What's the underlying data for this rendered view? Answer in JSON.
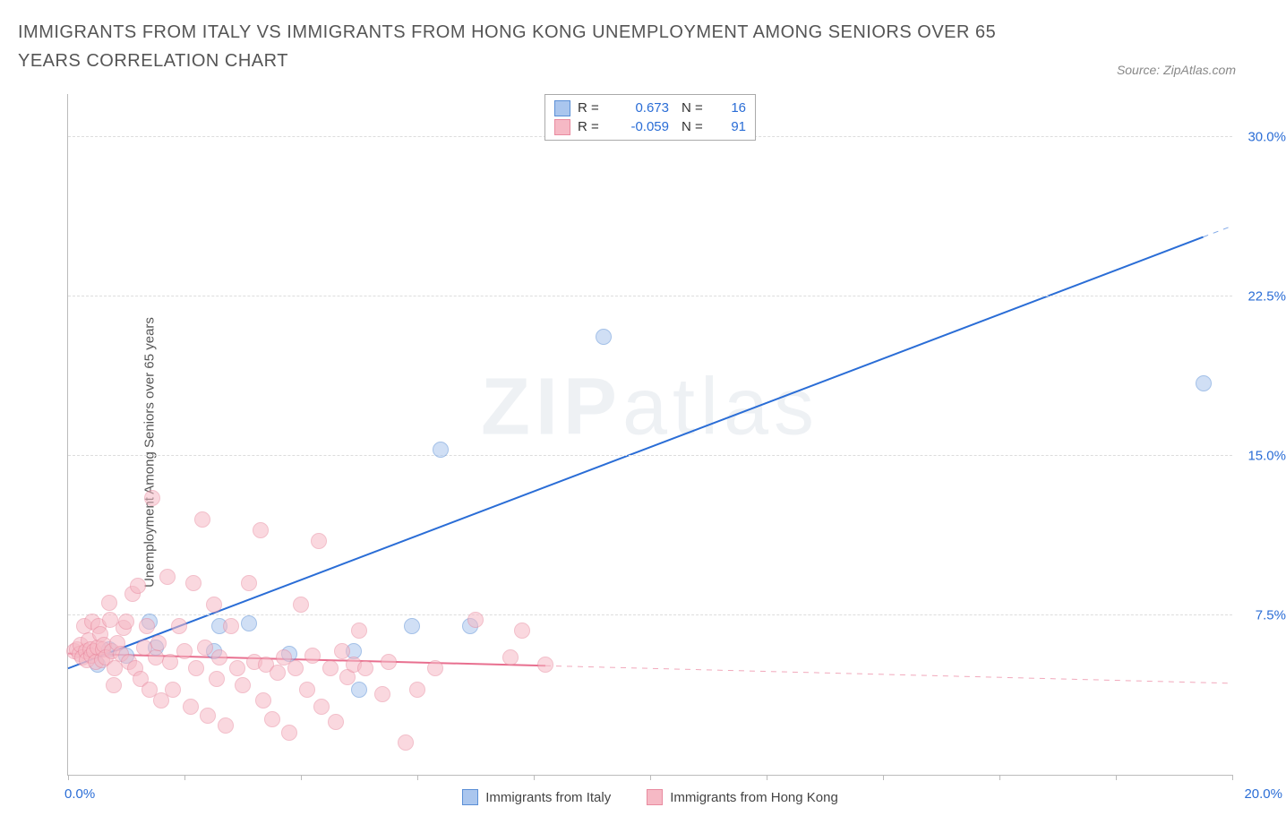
{
  "title": "IMMIGRANTS FROM ITALY VS IMMIGRANTS FROM HONG KONG UNEMPLOYMENT AMONG SENIORS OVER 65 YEARS CORRELATION CHART",
  "source_label": "Source: ZipAtlas.com",
  "watermark": {
    "bold": "ZIP",
    "rest": "atlas",
    "color": "#7a8fac"
  },
  "yaxis_label": "Unemployment Among Seniors over 65 years",
  "chart": {
    "type": "scatter",
    "background_color": "#ffffff",
    "grid_color": "#dddddd",
    "axis_color": "#bbbbbb",
    "xlim": [
      0,
      20
    ],
    "ylim": [
      0,
      32
    ],
    "xticks": [
      0,
      2,
      4,
      6,
      8,
      10,
      12,
      14,
      16,
      18,
      20
    ],
    "xtick_label_min": "0.0%",
    "xtick_label_max": "20.0%",
    "xtick_label_color": "#2a6dd6",
    "yticks": [
      7.5,
      15.0,
      22.5,
      30.0
    ],
    "ytick_labels": [
      "7.5%",
      "15.0%",
      "22.5%",
      "30.0%"
    ],
    "ytick_label_color": "#2a6dd6",
    "marker_radius": 8,
    "marker_border_width": 1.2,
    "series": [
      {
        "id": "italy",
        "label": "Immigrants from Italy",
        "point_fill": "#aac6ee",
        "point_stroke": "#5b8fd6",
        "fill_opacity": 0.55,
        "trend": {
          "x1": 0,
          "y1": 5.0,
          "x2": 20,
          "y2": 25.8,
          "data_xmax": 19.5,
          "color": "#2a6dd6",
          "width": 2
        },
        "stats": {
          "R": "0.673",
          "N": "16"
        },
        "points": [
          [
            0.5,
            5.2
          ],
          [
            0.7,
            5.9
          ],
          [
            1.0,
            5.6
          ],
          [
            1.4,
            7.2
          ],
          [
            1.5,
            6.0
          ],
          [
            2.5,
            5.8
          ],
          [
            2.6,
            7.0
          ],
          [
            3.1,
            7.1
          ],
          [
            3.8,
            5.7
          ],
          [
            4.9,
            5.8
          ],
          [
            5.0,
            4.0
          ],
          [
            5.9,
            7.0
          ],
          [
            6.9,
            7.0
          ],
          [
            6.4,
            15.3
          ],
          [
            9.2,
            20.6
          ],
          [
            19.5,
            18.4
          ]
        ]
      },
      {
        "id": "hongkong",
        "label": "Immigrants from Hong Kong",
        "point_fill": "#f6b9c5",
        "point_stroke": "#e98ba0",
        "fill_opacity": 0.55,
        "trend": {
          "x1": 0,
          "y1": 5.7,
          "x2": 20,
          "y2": 4.3,
          "data_xmax": 8.2,
          "color": "#e86f8f",
          "width": 2
        },
        "stats": {
          "R": "-0.059",
          "N": "91"
        },
        "points": [
          [
            0.1,
            5.8
          ],
          [
            0.15,
            5.9
          ],
          [
            0.2,
            5.7
          ],
          [
            0.22,
            6.1
          ],
          [
            0.25,
            5.5
          ],
          [
            0.28,
            7.0
          ],
          [
            0.3,
            5.8
          ],
          [
            0.32,
            5.4
          ],
          [
            0.35,
            6.3
          ],
          [
            0.38,
            5.9
          ],
          [
            0.4,
            5.6
          ],
          [
            0.42,
            7.2
          ],
          [
            0.45,
            5.8
          ],
          [
            0.48,
            5.3
          ],
          [
            0.5,
            6.0
          ],
          [
            0.52,
            7.0
          ],
          [
            0.55,
            6.6
          ],
          [
            0.58,
            5.4
          ],
          [
            0.6,
            5.9
          ],
          [
            0.62,
            6.1
          ],
          [
            0.65,
            5.5
          ],
          [
            0.7,
            8.1
          ],
          [
            0.72,
            7.3
          ],
          [
            0.75,
            5.8
          ],
          [
            0.78,
            4.2
          ],
          [
            0.8,
            5.0
          ],
          [
            0.85,
            6.2
          ],
          [
            0.9,
            5.7
          ],
          [
            0.95,
            6.9
          ],
          [
            1.0,
            7.2
          ],
          [
            1.05,
            5.3
          ],
          [
            1.1,
            8.5
          ],
          [
            1.15,
            5.0
          ],
          [
            1.2,
            8.9
          ],
          [
            1.25,
            4.5
          ],
          [
            1.3,
            6.0
          ],
          [
            1.35,
            7.0
          ],
          [
            1.4,
            4.0
          ],
          [
            1.45,
            13.0
          ],
          [
            1.5,
            5.5
          ],
          [
            1.55,
            6.2
          ],
          [
            1.6,
            3.5
          ],
          [
            1.7,
            9.3
          ],
          [
            1.75,
            5.3
          ],
          [
            1.8,
            4.0
          ],
          [
            1.9,
            7.0
          ],
          [
            2.0,
            5.8
          ],
          [
            2.1,
            3.2
          ],
          [
            2.15,
            9.0
          ],
          [
            2.2,
            5.0
          ],
          [
            2.3,
            12.0
          ],
          [
            2.35,
            6.0
          ],
          [
            2.4,
            2.8
          ],
          [
            2.5,
            8.0
          ],
          [
            2.55,
            4.5
          ],
          [
            2.6,
            5.5
          ],
          [
            2.7,
            2.3
          ],
          [
            2.8,
            7.0
          ],
          [
            2.9,
            5.0
          ],
          [
            3.0,
            4.2
          ],
          [
            3.1,
            9.0
          ],
          [
            3.2,
            5.3
          ],
          [
            3.3,
            11.5
          ],
          [
            3.35,
            3.5
          ],
          [
            3.4,
            5.2
          ],
          [
            3.5,
            2.6
          ],
          [
            3.6,
            4.8
          ],
          [
            3.7,
            5.5
          ],
          [
            3.8,
            2.0
          ],
          [
            3.9,
            5.0
          ],
          [
            4.0,
            8.0
          ],
          [
            4.1,
            4.0
          ],
          [
            4.2,
            5.6
          ],
          [
            4.3,
            11.0
          ],
          [
            4.35,
            3.2
          ],
          [
            4.5,
            5.0
          ],
          [
            4.6,
            2.5
          ],
          [
            4.7,
            5.8
          ],
          [
            4.8,
            4.6
          ],
          [
            4.9,
            5.2
          ],
          [
            5.0,
            6.8
          ],
          [
            5.1,
            5.0
          ],
          [
            5.4,
            3.8
          ],
          [
            5.5,
            5.3
          ],
          [
            5.8,
            1.5
          ],
          [
            6.0,
            4.0
          ],
          [
            6.3,
            5.0
          ],
          [
            7.0,
            7.3
          ],
          [
            7.6,
            5.5
          ],
          [
            7.8,
            6.8
          ],
          [
            8.2,
            5.2
          ]
        ]
      }
    ]
  },
  "legend_top": {
    "R_label": "R =",
    "N_label": "N ="
  }
}
